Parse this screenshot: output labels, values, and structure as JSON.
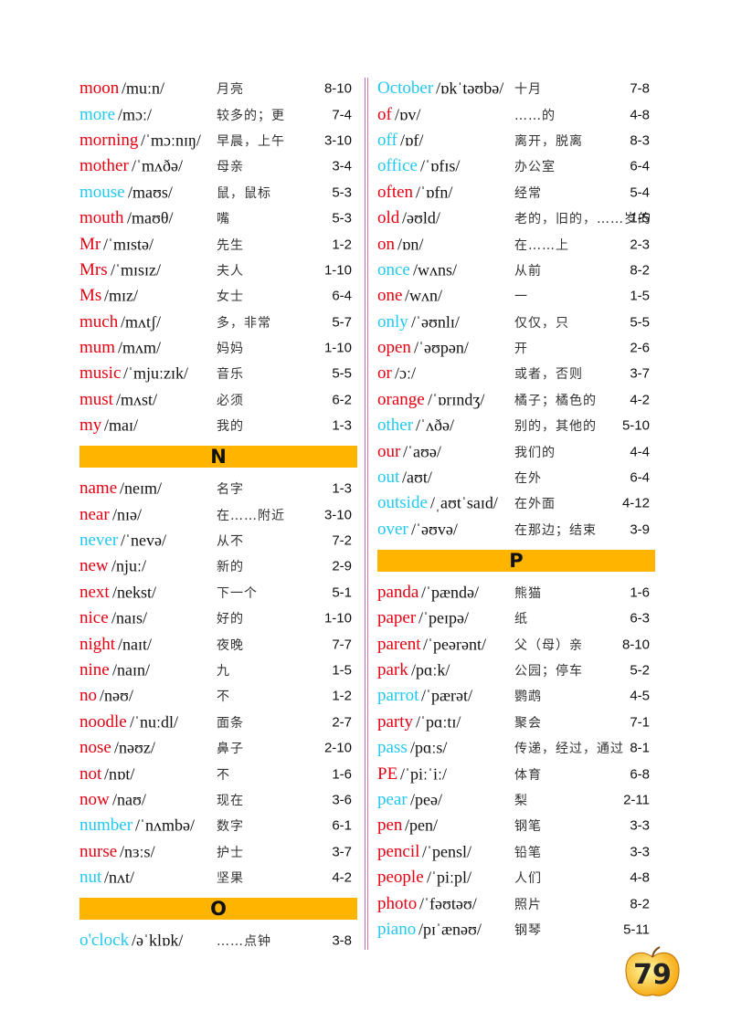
{
  "columns": [
    {
      "items": [
        {
          "word": "moon",
          "ipa": "/muːn/",
          "meaning": "月亮",
          "ref": "8-10",
          "color": "#e60012"
        },
        {
          "word": "more",
          "ipa": "/mɔː/",
          "meaning": "较多的；更",
          "ref": "7-4",
          "color": "#22c8f0"
        },
        {
          "word": "morning",
          "ipa": "/ˈmɔːnɪŋ/",
          "meaning": "早晨，上午",
          "ref": "3-10",
          "color": "#e60012"
        },
        {
          "word": "mother",
          "ipa": "/ˈmʌðə/",
          "meaning": "母亲",
          "ref": "3-4",
          "color": "#e60012"
        },
        {
          "word": "mouse",
          "ipa": "/maʊs/",
          "meaning": "鼠，鼠标",
          "ref": "5-3",
          "color": "#22c8f0"
        },
        {
          "word": "mouth",
          "ipa": "/maʊθ/",
          "meaning": "嘴",
          "ref": "5-3",
          "color": "#e60012"
        },
        {
          "word": "Mr",
          "ipa": "/ˈmɪstə/",
          "meaning": "先生",
          "ref": "1-2",
          "color": "#e60012"
        },
        {
          "word": "Mrs",
          "ipa": "/ˈmɪsɪz/",
          "meaning": "夫人",
          "ref": "1-10",
          "color": "#e60012"
        },
        {
          "word": "Ms",
          "ipa": "/mɪz/",
          "meaning": "女士",
          "ref": "6-4",
          "color": "#e60012"
        },
        {
          "word": "much",
          "ipa": "/mʌtʃ/",
          "meaning": "多，非常",
          "ref": "5-7",
          "color": "#e60012"
        },
        {
          "word": "mum",
          "ipa": "/mʌm/",
          "meaning": "妈妈",
          "ref": "1-10",
          "color": "#e60012"
        },
        {
          "word": "music",
          "ipa": "/ˈmjuːzɪk/",
          "meaning": "音乐",
          "ref": "5-5",
          "color": "#e60012"
        },
        {
          "word": "must",
          "ipa": "/mʌst/",
          "meaning": "必须",
          "ref": "6-2",
          "color": "#e60012"
        },
        {
          "word": "my",
          "ipa": "/maɪ/",
          "meaning": "我的",
          "ref": "1-3",
          "color": "#e60012"
        },
        {
          "letter": "N"
        },
        {
          "word": "name",
          "ipa": "/neɪm/",
          "meaning": "名字",
          "ref": "1-3",
          "color": "#e60012"
        },
        {
          "word": "near",
          "ipa": "/nɪə/",
          "meaning": "在……附近",
          "ref": "3-10",
          "color": "#e60012"
        },
        {
          "word": "never",
          "ipa": "/ˈnevə/",
          "meaning": "从不",
          "ref": "7-2",
          "color": "#22c8f0"
        },
        {
          "word": "new",
          "ipa": "/njuː/",
          "meaning": "新的",
          "ref": "2-9",
          "color": "#e60012"
        },
        {
          "word": "next",
          "ipa": "/nekst/",
          "meaning": "下一个",
          "ref": "5-1",
          "color": "#e60012"
        },
        {
          "word": "nice",
          "ipa": "/naɪs/",
          "meaning": "好的",
          "ref": "1-10",
          "color": "#e60012"
        },
        {
          "word": "night",
          "ipa": "/naɪt/",
          "meaning": "夜晚",
          "ref": "7-7",
          "color": "#e60012"
        },
        {
          "word": "nine",
          "ipa": "/naɪn/",
          "meaning": "九",
          "ref": "1-5",
          "color": "#e60012"
        },
        {
          "word": "no",
          "ipa": "/nəʊ/",
          "meaning": "不",
          "ref": "1-2",
          "color": "#e60012"
        },
        {
          "word": "noodle",
          "ipa": "/ˈnuːdl/",
          "meaning": "面条",
          "ref": "2-7",
          "color": "#e60012"
        },
        {
          "word": "nose",
          "ipa": "/nəʊz/",
          "meaning": "鼻子",
          "ref": "2-10",
          "color": "#e60012"
        },
        {
          "word": "not",
          "ipa": "/nɒt/",
          "meaning": "不",
          "ref": "1-6",
          "color": "#e60012"
        },
        {
          "word": "now",
          "ipa": "/naʊ/",
          "meaning": "现在",
          "ref": "3-6",
          "color": "#e60012"
        },
        {
          "word": "number",
          "ipa": "/ˈnʌmbə/",
          "meaning": "数字",
          "ref": "6-1",
          "color": "#22c8f0"
        },
        {
          "word": "nurse",
          "ipa": "/nɜːs/",
          "meaning": "护士",
          "ref": "3-7",
          "color": "#e60012"
        },
        {
          "word": "nut",
          "ipa": "/nʌt/",
          "meaning": "坚果",
          "ref": "4-2",
          "color": "#22c8f0"
        },
        {
          "letter": "O"
        },
        {
          "word": "o'clock",
          "ipa": "/əˈklɒk/",
          "meaning": "……点钟",
          "ref": "3-8",
          "color": "#22c8f0"
        }
      ]
    },
    {
      "items": [
        {
          "word": "October",
          "ipa": "/ɒkˈtəʊbə/",
          "meaning": "十月",
          "ref": "7-8",
          "color": "#22c8f0"
        },
        {
          "word": "of",
          "ipa": "/ɒv/",
          "meaning": "……的",
          "ref": "4-8",
          "color": "#e60012"
        },
        {
          "word": "off",
          "ipa": "/ɒf/",
          "meaning": "离开，脱离",
          "ref": "8-3",
          "color": "#22c8f0"
        },
        {
          "word": "office",
          "ipa": "/ˈɒfɪs/",
          "meaning": "办公室",
          "ref": "6-4",
          "color": "#22c8f0"
        },
        {
          "word": "often",
          "ipa": "/ˈɒfn/",
          "meaning": "经常",
          "ref": "5-4",
          "color": "#e60012"
        },
        {
          "word": "old",
          "ipa": "/əʊld/",
          "meaning": "老的，旧的，……岁的",
          "ref": "1-5",
          "color": "#e60012"
        },
        {
          "word": "on",
          "ipa": "/ɒn/",
          "meaning": "在……上",
          "ref": "2-3",
          "color": "#e60012"
        },
        {
          "word": "once",
          "ipa": "/wʌns/",
          "meaning": "从前",
          "ref": "8-2",
          "color": "#22c8f0"
        },
        {
          "word": "one",
          "ipa": "/wʌn/",
          "meaning": "一",
          "ref": "1-5",
          "color": "#e60012"
        },
        {
          "word": "only",
          "ipa": "/ˈəʊnlɪ/",
          "meaning": "仅仅，只",
          "ref": "5-5",
          "color": "#22c8f0"
        },
        {
          "word": "open",
          "ipa": "/ˈəʊpən/",
          "meaning": "开",
          "ref": "2-6",
          "color": "#e60012"
        },
        {
          "word": "or",
          "ipa": "/ɔː/",
          "meaning": "或者，否则",
          "ref": "3-7",
          "color": "#e60012"
        },
        {
          "word": "orange",
          "ipa": "/ˈɒrɪndʒ/",
          "meaning": "橘子；橘色的",
          "ref": "4-2",
          "color": "#e60012"
        },
        {
          "word": "other",
          "ipa": "/ˈʌðə/",
          "meaning": "别的，其他的",
          "ref": "5-10",
          "color": "#22c8f0"
        },
        {
          "word": "our",
          "ipa": "/ˈaʊə/",
          "meaning": "我们的",
          "ref": "4-4",
          "color": "#e60012"
        },
        {
          "word": "out",
          "ipa": "/aʊt/",
          "meaning": "在外",
          "ref": "6-4",
          "color": "#22c8f0"
        },
        {
          "word": "outside",
          "ipa": "/ˌaʊtˈsaɪd/",
          "meaning": "在外面",
          "ref": "4-12",
          "color": "#22c8f0"
        },
        {
          "word": "over",
          "ipa": "/ˈəʊvə/",
          "meaning": "在那边；结束",
          "ref": "3-9",
          "color": "#22c8f0"
        },
        {
          "letter": "P"
        },
        {
          "word": "panda",
          "ipa": "/ˈpændə/",
          "meaning": "熊猫",
          "ref": "1-6",
          "color": "#e60012"
        },
        {
          "word": "paper",
          "ipa": "/ˈpeɪpə/",
          "meaning": "纸",
          "ref": "6-3",
          "color": "#e60012"
        },
        {
          "word": "parent",
          "ipa": "/ˈpeərənt/",
          "meaning": "父（母）亲",
          "ref": "8-10",
          "color": "#e60012"
        },
        {
          "word": "park",
          "ipa": "/pɑːk/",
          "meaning": "公园；停车",
          "ref": "5-2",
          "color": "#e60012"
        },
        {
          "word": "parrot",
          "ipa": "/ˈpærət/",
          "meaning": "鹦鹉",
          "ref": "4-5",
          "color": "#22c8f0"
        },
        {
          "word": "party",
          "ipa": "/ˈpɑːtɪ/",
          "meaning": "聚会",
          "ref": "7-1",
          "color": "#e60012"
        },
        {
          "word": "pass",
          "ipa": "/pɑːs/",
          "meaning": "传递，经过，通过",
          "ref": "8-1",
          "color": "#22c8f0"
        },
        {
          "word": "PE",
          "ipa": "/ˈpiːˈiː/",
          "meaning": "体育",
          "ref": "6-8",
          "color": "#e60012"
        },
        {
          "word": "pear",
          "ipa": "/peə/",
          "meaning": "梨",
          "ref": "2-11",
          "color": "#22c8f0"
        },
        {
          "word": "pen",
          "ipa": "/pen/",
          "meaning": "钢笔",
          "ref": "3-3",
          "color": "#e60012"
        },
        {
          "word": "pencil",
          "ipa": "/ˈpensl/",
          "meaning": "铅笔",
          "ref": "3-3",
          "color": "#e60012"
        },
        {
          "word": "people",
          "ipa": "/ˈpiːpl/",
          "meaning": "人们",
          "ref": "4-8",
          "color": "#e60012"
        },
        {
          "word": "photo",
          "ipa": "/ˈfəʊtəʊ/",
          "meaning": "照片",
          "ref": "8-2",
          "color": "#e60012"
        },
        {
          "word": "piano",
          "ipa": "/pɪˈænəʊ/",
          "meaning": "钢琴",
          "ref": "5-11",
          "color": "#22c8f0"
        }
      ]
    }
  ],
  "page_number": "79"
}
